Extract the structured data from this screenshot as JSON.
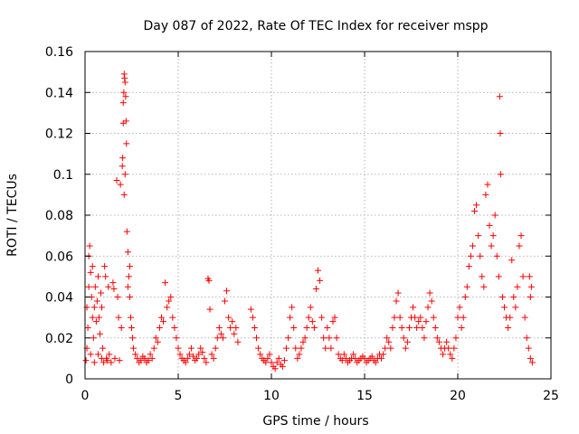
{
  "chart_data": {
    "type": "scatter",
    "title": "Day 087 of 2022, Rate Of TEC Index for receiver mspp",
    "xlabel": "GPS time / hours",
    "ylabel": "ROTI / TECUs",
    "xlim": [
      0,
      25
    ],
    "ylim": [
      0,
      0.16
    ],
    "xticks": [
      0,
      5,
      10,
      15,
      20,
      25
    ],
    "yticks": [
      0,
      0.02,
      0.04,
      0.06,
      0.08,
      0.1,
      0.12,
      0.14,
      0.16
    ],
    "xtick_labels": [
      "0",
      "5",
      "10",
      "15",
      "20",
      "25"
    ],
    "ytick_labels": [
      "0",
      "0.02",
      "0.04",
      "0.06",
      "0.08",
      "0.1",
      "0.12",
      "0.14",
      "0.16"
    ],
    "grid": true,
    "marker": "+",
    "color": "#ff0000",
    "series": [
      {
        "name": "",
        "points": [
          [
            0.05,
            0.009
          ],
          [
            0.1,
            0.015
          ],
          [
            0.1,
            0.035
          ],
          [
            0.15,
            0.025
          ],
          [
            0.2,
            0.045
          ],
          [
            0.2,
            0.06
          ],
          [
            0.25,
            0.065
          ],
          [
            0.3,
            0.052
          ],
          [
            0.3,
            0.012
          ],
          [
            0.35,
            0.04
          ],
          [
            0.4,
            0.03
          ],
          [
            0.4,
            0.055
          ],
          [
            0.45,
            0.02
          ],
          [
            0.5,
            0.035
          ],
          [
            0.5,
            0.008
          ],
          [
            0.55,
            0.045
          ],
          [
            0.6,
            0.028
          ],
          [
            0.65,
            0.038
          ],
          [
            0.7,
            0.012
          ],
          [
            0.7,
            0.05
          ],
          [
            0.75,
            0.03
          ],
          [
            0.8,
            0.022
          ],
          [
            0.85,
            0.042
          ],
          [
            0.9,
            0.01
          ],
          [
            0.9,
            0.035
          ],
          [
            0.95,
            0.015
          ],
          [
            1.0,
            0.008
          ],
          [
            1.05,
            0.055
          ],
          [
            1.1,
            0.05
          ],
          [
            1.15,
            0.01
          ],
          [
            1.2,
            0.009
          ],
          [
            1.25,
            0.045
          ],
          [
            1.3,
            0.012
          ],
          [
            1.4,
            0.008
          ],
          [
            1.5,
            0.047
          ],
          [
            1.55,
            0.044
          ],
          [
            1.6,
            0.01
          ],
          [
            1.7,
            0.097
          ],
          [
            1.75,
            0.04
          ],
          [
            1.8,
            0.03
          ],
          [
            1.85,
            0.009
          ],
          [
            1.9,
            0.095
          ],
          [
            1.95,
            0.025
          ],
          [
            2.0,
            0.104
          ],
          [
            2.02,
            0.108
          ],
          [
            2.05,
            0.125
          ],
          [
            2.05,
            0.135
          ],
          [
            2.08,
            0.14
          ],
          [
            2.1,
            0.149
          ],
          [
            2.12,
            0.147
          ],
          [
            2.15,
            0.145
          ],
          [
            2.18,
            0.138
          ],
          [
            2.2,
            0.126
          ],
          [
            2.22,
            0.115
          ],
          [
            2.15,
            0.1
          ],
          [
            2.1,
            0.09
          ],
          [
            2.25,
            0.072
          ],
          [
            2.3,
            0.062
          ],
          [
            2.35,
            0.05
          ],
          [
            2.4,
            0.04
          ],
          [
            2.45,
            0.03
          ],
          [
            2.5,
            0.025
          ],
          [
            2.55,
            0.02
          ],
          [
            2.6,
            0.015
          ],
          [
            2.7,
            0.012
          ],
          [
            2.8,
            0.01
          ],
          [
            2.9,
            0.008
          ],
          [
            2.4,
            0.055
          ],
          [
            2.3,
            0.045
          ],
          [
            3.0,
            0.009
          ],
          [
            3.1,
            0.011
          ],
          [
            3.2,
            0.01
          ],
          [
            3.3,
            0.008
          ],
          [
            3.4,
            0.009
          ],
          [
            3.5,
            0.012
          ],
          [
            3.6,
            0.01
          ],
          [
            3.7,
            0.015
          ],
          [
            3.8,
            0.02
          ],
          [
            3.9,
            0.018
          ],
          [
            4.0,
            0.025
          ],
          [
            4.1,
            0.03
          ],
          [
            4.2,
            0.028
          ],
          [
            4.3,
            0.047
          ],
          [
            4.4,
            0.035
          ],
          [
            4.5,
            0.038
          ],
          [
            4.6,
            0.04
          ],
          [
            4.7,
            0.03
          ],
          [
            4.8,
            0.025
          ],
          [
            4.9,
            0.02
          ],
          [
            5.0,
            0.015
          ],
          [
            5.1,
            0.012
          ],
          [
            5.2,
            0.01
          ],
          [
            5.3,
            0.009
          ],
          [
            5.4,
            0.008
          ],
          [
            5.5,
            0.01
          ],
          [
            5.6,
            0.012
          ],
          [
            5.7,
            0.015
          ],
          [
            5.8,
            0.011
          ],
          [
            5.9,
            0.009
          ],
          [
            6.0,
            0.01
          ],
          [
            6.1,
            0.012
          ],
          [
            6.2,
            0.015
          ],
          [
            6.3,
            0.013
          ],
          [
            6.4,
            0.01
          ],
          [
            6.5,
            0.008
          ],
          [
            6.6,
            0.049
          ],
          [
            6.65,
            0.048
          ],
          [
            6.7,
            0.034
          ],
          [
            6.8,
            0.012
          ],
          [
            6.9,
            0.01
          ],
          [
            7.0,
            0.015
          ],
          [
            7.1,
            0.02
          ],
          [
            7.2,
            0.025
          ],
          [
            7.3,
            0.022
          ],
          [
            7.4,
            0.02
          ],
          [
            7.5,
            0.038
          ],
          [
            7.6,
            0.043
          ],
          [
            7.7,
            0.03
          ],
          [
            7.8,
            0.025
          ],
          [
            7.9,
            0.028
          ],
          [
            8.0,
            0.022
          ],
          [
            8.1,
            0.025
          ],
          [
            8.2,
            0.018
          ],
          [
            8.9,
            0.034
          ],
          [
            9.0,
            0.03
          ],
          [
            9.1,
            0.025
          ],
          [
            9.2,
            0.02
          ],
          [
            9.3,
            0.015
          ],
          [
            9.4,
            0.012
          ],
          [
            9.5,
            0.01
          ],
          [
            9.6,
            0.009
          ],
          [
            9.7,
            0.008
          ],
          [
            9.8,
            0.01
          ],
          [
            9.9,
            0.012
          ],
          [
            10.0,
            0.008
          ],
          [
            10.1,
            0.006
          ],
          [
            10.2,
            0.005
          ],
          [
            10.3,
            0.008
          ],
          [
            10.4,
            0.01
          ],
          [
            10.5,
            0.007
          ],
          [
            10.6,
            0.006
          ],
          [
            10.7,
            0.009
          ],
          [
            10.8,
            0.015
          ],
          [
            10.9,
            0.02
          ],
          [
            11.0,
            0.03
          ],
          [
            11.1,
            0.035
          ],
          [
            11.2,
            0.025
          ],
          [
            11.3,
            0.015
          ],
          [
            11.4,
            0.01
          ],
          [
            11.5,
            0.012
          ],
          [
            11.6,
            0.015
          ],
          [
            11.7,
            0.018
          ],
          [
            11.8,
            0.02
          ],
          [
            11.9,
            0.025
          ],
          [
            12.0,
            0.03
          ],
          [
            12.1,
            0.035
          ],
          [
            12.2,
            0.028
          ],
          [
            12.3,
            0.025
          ],
          [
            12.4,
            0.044
          ],
          [
            12.5,
            0.053
          ],
          [
            12.6,
            0.048
          ],
          [
            12.7,
            0.03
          ],
          [
            12.8,
            0.02
          ],
          [
            12.9,
            0.015
          ],
          [
            13.0,
            0.025
          ],
          [
            13.1,
            0.02
          ],
          [
            13.2,
            0.015
          ],
          [
            13.3,
            0.028
          ],
          [
            13.4,
            0.03
          ],
          [
            13.5,
            0.02
          ],
          [
            13.6,
            0.012
          ],
          [
            13.7,
            0.01
          ],
          [
            13.8,
            0.009
          ],
          [
            13.9,
            0.012
          ],
          [
            14.0,
            0.01
          ],
          [
            14.1,
            0.008
          ],
          [
            14.2,
            0.009
          ],
          [
            14.3,
            0.01
          ],
          [
            14.4,
            0.012
          ],
          [
            14.5,
            0.01
          ],
          [
            14.6,
            0.008
          ],
          [
            14.7,
            0.009
          ],
          [
            14.8,
            0.01
          ],
          [
            14.9,
            0.011
          ],
          [
            15.0,
            0.01
          ],
          [
            15.1,
            0.008
          ],
          [
            15.2,
            0.009
          ],
          [
            15.3,
            0.01
          ],
          [
            15.4,
            0.011
          ],
          [
            15.5,
            0.009
          ],
          [
            15.6,
            0.008
          ],
          [
            15.7,
            0.01
          ],
          [
            15.8,
            0.012
          ],
          [
            15.9,
            0.01
          ],
          [
            16.0,
            0.012
          ],
          [
            16.1,
            0.015
          ],
          [
            16.2,
            0.02
          ],
          [
            16.3,
            0.018
          ],
          [
            16.4,
            0.015
          ],
          [
            16.5,
            0.025
          ],
          [
            16.6,
            0.03
          ],
          [
            16.7,
            0.038
          ],
          [
            16.8,
            0.042
          ],
          [
            16.9,
            0.03
          ],
          [
            17.0,
            0.025
          ],
          [
            17.1,
            0.02
          ],
          [
            17.2,
            0.015
          ],
          [
            17.3,
            0.018
          ],
          [
            17.4,
            0.025
          ],
          [
            17.5,
            0.03
          ],
          [
            17.6,
            0.035
          ],
          [
            17.7,
            0.03
          ],
          [
            17.8,
            0.025
          ],
          [
            17.9,
            0.028
          ],
          [
            18.0,
            0.03
          ],
          [
            18.1,
            0.025
          ],
          [
            18.2,
            0.02
          ],
          [
            18.3,
            0.028
          ],
          [
            18.4,
            0.035
          ],
          [
            18.5,
            0.042
          ],
          [
            18.6,
            0.038
          ],
          [
            18.7,
            0.03
          ],
          [
            18.8,
            0.025
          ],
          [
            18.9,
            0.02
          ],
          [
            19.0,
            0.018
          ],
          [
            19.1,
            0.015
          ],
          [
            19.2,
            0.012
          ],
          [
            19.3,
            0.015
          ],
          [
            19.4,
            0.018
          ],
          [
            19.5,
            0.015
          ],
          [
            19.6,
            0.012
          ],
          [
            19.7,
            0.01
          ],
          [
            19.8,
            0.015
          ],
          [
            19.9,
            0.02
          ],
          [
            20.0,
            0.03
          ],
          [
            20.1,
            0.035
          ],
          [
            20.2,
            0.025
          ],
          [
            20.3,
            0.03
          ],
          [
            20.4,
            0.04
          ],
          [
            20.5,
            0.045
          ],
          [
            20.6,
            0.055
          ],
          [
            20.7,
            0.06
          ],
          [
            20.8,
            0.065
          ],
          [
            20.9,
            0.082
          ],
          [
            21.0,
            0.085
          ],
          [
            21.1,
            0.07
          ],
          [
            21.2,
            0.06
          ],
          [
            21.3,
            0.05
          ],
          [
            21.4,
            0.045
          ],
          [
            21.5,
            0.09
          ],
          [
            21.6,
            0.095
          ],
          [
            21.7,
            0.075
          ],
          [
            21.8,
            0.065
          ],
          [
            21.9,
            0.07
          ],
          [
            22.0,
            0.08
          ],
          [
            22.1,
            0.06
          ],
          [
            22.2,
            0.05
          ],
          [
            22.25,
            0.138
          ],
          [
            22.28,
            0.12
          ],
          [
            22.3,
            0.1
          ],
          [
            22.4,
            0.04
          ],
          [
            22.5,
            0.035
          ],
          [
            22.6,
            0.03
          ],
          [
            22.7,
            0.025
          ],
          [
            22.8,
            0.03
          ],
          [
            22.9,
            0.058
          ],
          [
            23.0,
            0.04
          ],
          [
            23.1,
            0.035
          ],
          [
            23.2,
            0.045
          ],
          [
            23.3,
            0.065
          ],
          [
            23.4,
            0.07
          ],
          [
            23.5,
            0.05
          ],
          [
            23.6,
            0.03
          ],
          [
            23.7,
            0.02
          ],
          [
            23.8,
            0.015
          ],
          [
            23.9,
            0.01
          ],
          [
            24.0,
            0.008
          ],
          [
            23.9,
            0.04
          ],
          [
            23.85,
            0.05
          ],
          [
            23.95,
            0.045
          ]
        ]
      }
    ]
  }
}
